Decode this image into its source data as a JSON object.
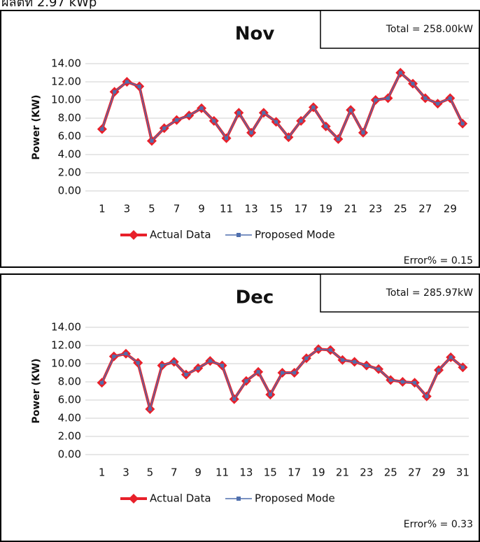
{
  "header_text": "ผลิตที่ 2.97 kWp",
  "chart_data": [
    {
      "type": "line",
      "title": "Nov",
      "annotations": [
        "Total = 258.00kW",
        "Error% = 0.15"
      ],
      "y_label": "Power (KW)",
      "categories": [
        1,
        null,
        3,
        null,
        5,
        null,
        7,
        null,
        9,
        null,
        11,
        null,
        13,
        null,
        15,
        null,
        17,
        null,
        19,
        null,
        21,
        null,
        23,
        null,
        25,
        null,
        27,
        null,
        29,
        null
      ],
      "series": [
        {
          "name": "Actual Data",
          "color": "#e8202a",
          "marker": "diamond",
          "values": [
            6.8,
            10.9,
            12.0,
            11.5,
            5.5,
            6.9,
            7.8,
            8.3,
            9.1,
            7.7,
            5.8,
            8.6,
            6.4,
            8.6,
            7.6,
            5.9,
            7.7,
            9.2,
            7.1,
            5.7,
            8.9,
            6.4,
            10.0,
            10.2,
            13.0,
            11.8,
            10.2,
            9.6,
            10.2,
            7.4
          ]
        },
        {
          "name": "Proposed Mode",
          "color": "#4f6fad",
          "marker": "square",
          "values": [
            6.8,
            10.9,
            12.0,
            11.5,
            5.5,
            6.9,
            7.8,
            8.3,
            9.1,
            7.7,
            5.8,
            8.6,
            6.4,
            8.6,
            7.6,
            5.9,
            7.7,
            9.2,
            7.1,
            5.7,
            8.9,
            6.4,
            10.0,
            10.2,
            13.0,
            11.8,
            10.2,
            9.6,
            10.2,
            7.4
          ]
        }
      ],
      "ylim": [
        0,
        14
      ],
      "yticks": [
        {
          "value": 0,
          "label": "0.00"
        },
        {
          "value": 2,
          "label": "2.00"
        },
        {
          "value": 4,
          "label": "4.00"
        },
        {
          "value": 6,
          "label": "6.00"
        },
        {
          "value": 8,
          "label": "8.00"
        },
        {
          "value": 10,
          "label": "10.00"
        },
        {
          "value": 12,
          "label": "12.00"
        },
        {
          "value": 14,
          "label": "14.00"
        }
      ],
      "grid": true
    },
    {
      "type": "line",
      "title": "Dec",
      "annotations": [
        "Total = 285.97kW",
        "Error% = 0.33"
      ],
      "y_label": "Power (KW)",
      "categories": [
        1,
        null,
        3,
        null,
        5,
        null,
        7,
        null,
        9,
        null,
        11,
        null,
        13,
        null,
        15,
        null,
        17,
        null,
        19,
        null,
        21,
        null,
        23,
        null,
        25,
        null,
        27,
        null,
        29,
        null,
        31
      ],
      "series": [
        {
          "name": "Actual Data",
          "color": "#e8202a",
          "marker": "diamond",
          "values": [
            7.9,
            10.8,
            11.1,
            10.1,
            5.0,
            9.8,
            10.2,
            8.8,
            9.5,
            10.3,
            9.8,
            6.1,
            8.1,
            9.1,
            6.6,
            9.0,
            9.0,
            10.6,
            11.6,
            11.5,
            10.4,
            10.2,
            9.8,
            9.4,
            8.2,
            8.0,
            7.9,
            6.4,
            9.3,
            10.7,
            9.6
          ]
        },
        {
          "name": "Proposed Mode",
          "color": "#4f6fad",
          "marker": "square",
          "values": [
            7.9,
            10.8,
            11.1,
            10.1,
            5.0,
            9.8,
            10.2,
            8.8,
            9.5,
            10.3,
            9.8,
            6.1,
            8.1,
            9.1,
            6.6,
            9.0,
            9.0,
            10.6,
            11.6,
            11.5,
            10.4,
            10.2,
            9.8,
            9.4,
            8.2,
            8.0,
            7.9,
            6.4,
            9.3,
            10.7,
            9.6
          ]
        }
      ],
      "ylim": [
        0,
        14
      ],
      "yticks": [
        {
          "value": 0,
          "label": "0.00"
        },
        {
          "value": 2,
          "label": "2.00"
        },
        {
          "value": 4,
          "label": "4.00"
        },
        {
          "value": 6,
          "label": "6.00"
        },
        {
          "value": 8,
          "label": "8.00"
        },
        {
          "value": 10,
          "label": "10.00"
        },
        {
          "value": 12,
          "label": "12.00"
        },
        {
          "value": 14,
          "label": "14.00"
        }
      ],
      "grid": true
    }
  ]
}
